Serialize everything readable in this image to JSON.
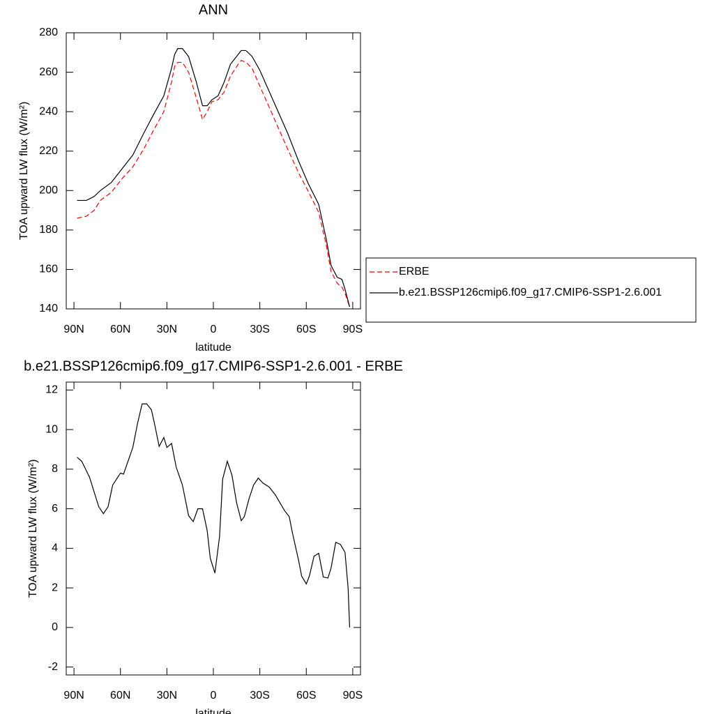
{
  "chart_data": [
    {
      "type": "line",
      "title": "ANN",
      "x_label": "latitude",
      "y_label": "TOA upward LW flux (W/m²)",
      "x": [
        88,
        82,
        77,
        73,
        66,
        59,
        52,
        45,
        39,
        32,
        27,
        25,
        23,
        20,
        16,
        11,
        7,
        4,
        1,
        -3,
        -7,
        -11,
        -16,
        -18,
        -21,
        -25,
        -30,
        -39,
        -48,
        -55,
        -61,
        -68,
        -73,
        -76,
        -80,
        -83,
        -85,
        -88
      ],
      "series": [
        {
          "name": "ERBE",
          "color": "#ff0000",
          "linestyle": "dashed",
          "values": [
            186,
            187,
            190,
            195,
            199,
            206,
            212,
            221,
            230,
            240,
            255,
            263,
            265,
            265,
            260,
            247,
            236,
            240,
            245,
            246,
            250,
            258,
            264,
            266,
            265,
            262,
            253,
            237,
            221,
            209,
            200,
            189,
            172,
            159,
            153,
            151,
            148,
            141
          ]
        },
        {
          "name": "b.e21.BSSP126cmip6.f09_g17.CMIP6-SSP1-2.6.001",
          "color": "#000000",
          "linestyle": "solid",
          "values": [
            195,
            195,
            197,
            200,
            204,
            211,
            218,
            229,
            238,
            248,
            262,
            269,
            272,
            272,
            268,
            255,
            243,
            243,
            246,
            248,
            255,
            264,
            269,
            271,
            271,
            268,
            261,
            245,
            229,
            215,
            204,
            193,
            175,
            162,
            156,
            155,
            150,
            141
          ]
        }
      ],
      "xlim": [
        95,
        -95
      ],
      "ylim": [
        140,
        280
      ],
      "xticks": [
        {
          "value": 90,
          "label": "90N"
        },
        {
          "value": 60,
          "label": "60N"
        },
        {
          "value": 30,
          "label": "30N"
        },
        0,
        {
          "value": -30,
          "label": "30S"
        },
        {
          "value": -60,
          "label": "60S"
        },
        {
          "value": -90,
          "label": "90S"
        }
      ],
      "yticks": [
        140,
        160,
        180,
        200,
        220,
        240,
        260,
        280
      ]
    },
    {
      "type": "line",
      "title": "b.e21.BSSP126cmip6.f09_g17.CMIP6-SSP1-2.6.001 - ERBE",
      "x_label": "latitude",
      "y_label": "TOA upward LW flux (W/m²)",
      "x": [
        88,
        85,
        80,
        74,
        71,
        68,
        65,
        60,
        58,
        52,
        49,
        46,
        43,
        40,
        38,
        35,
        32,
        30,
        27,
        24,
        20,
        16,
        13,
        10,
        7,
        4,
        2,
        -1,
        -4,
        -6,
        -9,
        -12,
        -15,
        -18,
        -20,
        -23,
        -26,
        -29,
        -32,
        -36,
        -40,
        -43,
        -46,
        -49,
        -51,
        -55,
        -57,
        -60,
        -62,
        -65,
        -68,
        -71,
        -74,
        -76,
        -79,
        -82,
        -85,
        -87,
        -88
      ],
      "values": [
        8.6,
        8.4,
        7.6,
        6.1,
        5.75,
        6.1,
        7.2,
        7.8,
        7.75,
        9.1,
        10.3,
        11.3,
        11.3,
        11.0,
        10.3,
        9.15,
        9.6,
        9.1,
        9.3,
        8.1,
        7.2,
        5.65,
        5.35,
        6.0,
        6.0,
        4.9,
        3.5,
        2.75,
        4.6,
        7.5,
        8.4,
        7.7,
        6.3,
        5.4,
        5.6,
        6.5,
        7.2,
        7.55,
        7.3,
        7.1,
        6.7,
        6.3,
        5.9,
        5.6,
        4.8,
        3.4,
        2.6,
        2.2,
        2.6,
        3.6,
        3.75,
        2.55,
        2.5,
        3.0,
        4.3,
        4.2,
        3.8,
        2.0,
        0
      ],
      "color": "#000000",
      "xlim": [
        95,
        -95
      ],
      "ylim": [
        -2.4,
        12.4
      ],
      "xticks": [
        {
          "value": 90,
          "label": "90N"
        },
        {
          "value": 60,
          "label": "60N"
        },
        {
          "value": 30,
          "label": "30N"
        },
        0,
        {
          "value": -30,
          "label": "30S"
        },
        {
          "value": -60,
          "label": "60S"
        },
        {
          "value": -90,
          "label": "90S"
        }
      ],
      "yticks": [
        -2,
        0,
        2,
        4,
        6,
        8,
        10,
        12
      ]
    }
  ]
}
